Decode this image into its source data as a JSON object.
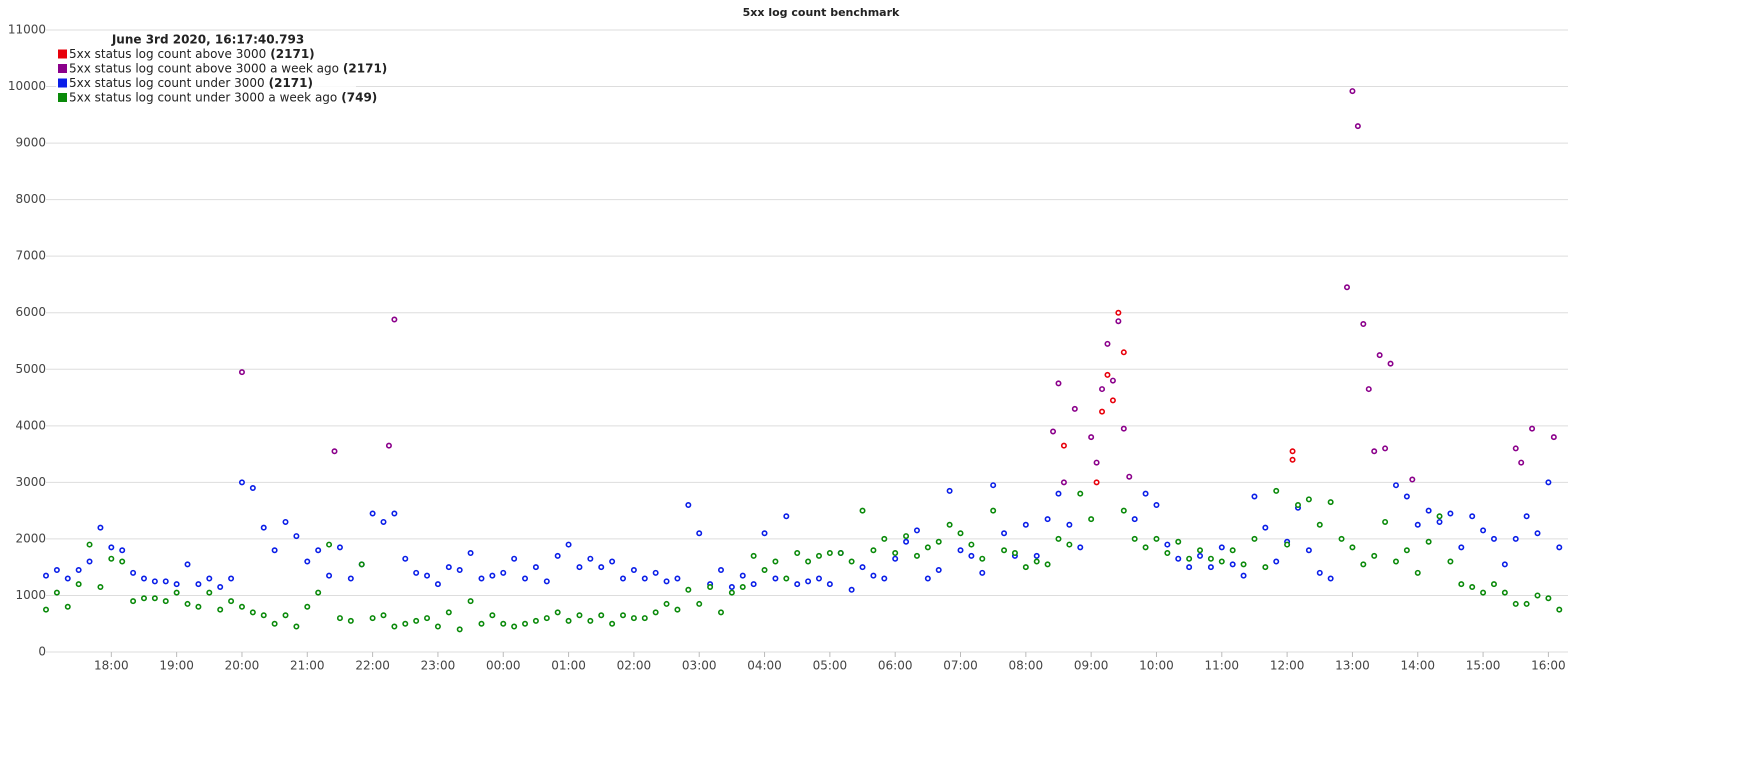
{
  "chart_data": {
    "type": "scatter",
    "title": "5xx log count benchmark",
    "legend_title": "June 3rd 2020, 16:17:40.793",
    "xlim": [
      "17:00",
      "16:18"
    ],
    "xticks": [
      "18:00",
      "19:00",
      "20:00",
      "21:00",
      "22:00",
      "23:00",
      "00:00",
      "01:00",
      "02:00",
      "03:00",
      "04:00",
      "05:00",
      "06:00",
      "07:00",
      "08:00",
      "09:00",
      "10:00",
      "11:00",
      "12:00",
      "13:00",
      "14:00",
      "15:00",
      "16:00"
    ],
    "ylim": [
      0,
      11000
    ],
    "yticks": [
      0,
      1000,
      2000,
      3000,
      4000,
      5000,
      6000,
      7000,
      8000,
      9000,
      10000,
      11000
    ],
    "grid": true,
    "x": [
      "17:00",
      "17:10",
      "17:20",
      "17:30",
      "17:40",
      "17:50",
      "18:00",
      "18:10",
      "18:20",
      "18:30",
      "18:40",
      "18:50",
      "19:00",
      "19:10",
      "19:20",
      "19:30",
      "19:40",
      "19:50",
      "20:00",
      "20:10",
      "20:20",
      "20:30",
      "20:40",
      "20:50",
      "21:00",
      "21:10",
      "21:20",
      "21:30",
      "21:40",
      "21:50",
      "22:00",
      "22:10",
      "22:20",
      "22:30",
      "22:40",
      "22:50",
      "23:00",
      "23:10",
      "23:20",
      "23:30",
      "23:40",
      "23:50",
      "00:00",
      "00:10",
      "00:20",
      "00:30",
      "00:40",
      "00:50",
      "01:00",
      "01:10",
      "01:20",
      "01:30",
      "01:40",
      "01:50",
      "02:00",
      "02:10",
      "02:20",
      "02:30",
      "02:40",
      "02:50",
      "03:00",
      "03:10",
      "03:20",
      "03:30",
      "03:40",
      "03:50",
      "04:00",
      "04:10",
      "04:20",
      "04:30",
      "04:40",
      "04:50",
      "05:00",
      "05:10",
      "05:20",
      "05:30",
      "05:40",
      "05:50",
      "06:00",
      "06:10",
      "06:20",
      "06:30",
      "06:40",
      "06:50",
      "07:00",
      "07:10",
      "07:20",
      "07:30",
      "07:40",
      "07:50",
      "08:00",
      "08:10",
      "08:20",
      "08:30",
      "08:40",
      "08:50",
      "09:00",
      "09:10",
      "09:20",
      "09:30",
      "09:40",
      "09:50",
      "10:00",
      "10:10",
      "10:20",
      "10:30",
      "10:40",
      "10:50",
      "11:00",
      "11:10",
      "11:20",
      "11:30",
      "11:40",
      "11:50",
      "12:00",
      "12:10",
      "12:20",
      "12:30",
      "12:40",
      "12:50",
      "13:00",
      "13:10",
      "13:20",
      "13:30",
      "13:40",
      "13:50",
      "14:00",
      "14:10",
      "14:20",
      "14:30",
      "14:40",
      "14:50",
      "15:00",
      "15:10",
      "15:20",
      "15:30",
      "15:40",
      "15:50",
      "16:00",
      "16:10"
    ],
    "series": [
      {
        "name": "5xx status log count above 3000",
        "legend_label": "(2171)",
        "color": "#e8000b",
        "x": [
          "08:35",
          "09:05",
          "09:10",
          "09:15",
          "09:20",
          "09:25",
          "09:30",
          "12:05",
          "12:05"
        ],
        "values": [
          3650,
          3000,
          4250,
          4900,
          4450,
          6000,
          5300,
          3550,
          3400
        ]
      },
      {
        "name": "5xx status log count above 3000 a week ago",
        "legend_label": "(2171)",
        "color": "#8b008b",
        "x": [
          "20:00",
          "21:25",
          "22:15",
          "22:20",
          "08:25",
          "08:30",
          "08:35",
          "08:45",
          "09:00",
          "09:05",
          "09:10",
          "09:15",
          "09:20",
          "09:25",
          "09:30",
          "09:35",
          "12:55",
          "13:00",
          "13:05",
          "13:10",
          "13:15",
          "13:20",
          "13:25",
          "13:30",
          "13:35",
          "13:55",
          "15:30",
          "15:35",
          "15:45",
          "16:05"
        ],
        "values": [
          4950,
          3550,
          3650,
          5880,
          3900,
          4750,
          3000,
          4300,
          3800,
          3350,
          4650,
          5450,
          4800,
          5850,
          3950,
          3100,
          6450,
          9920,
          9300,
          5800,
          4650,
          3550,
          5250,
          3600,
          5100,
          3050,
          3600,
          3350,
          3950,
          3800
        ]
      },
      {
        "name": "5xx status log count under 3000",
        "legend_label": "(2171)",
        "color": "#0a1ee8",
        "values": [
          1350,
          1450,
          1300,
          1450,
          1600,
          2200,
          1850,
          1800,
          1400,
          1300,
          1250,
          1250,
          1200,
          1550,
          1200,
          1300,
          1150,
          1300,
          3000,
          2900,
          2200,
          1800,
          2300,
          2050,
          1600,
          1800,
          1350,
          1850,
          1300,
          1550,
          2450,
          2300,
          2450,
          1650,
          1400,
          1350,
          1200,
          1500,
          1450,
          1750,
          1300,
          1350,
          1400,
          1650,
          1300,
          1500,
          1250,
          1700,
          1900,
          1500,
          1650,
          1500,
          1600,
          1300,
          1450,
          1300,
          1400,
          1250,
          1300,
          2600,
          2100,
          1200,
          1450,
          1150,
          1350,
          1200,
          2100,
          1300,
          2400,
          1200,
          1250,
          1300,
          1200,
          1750,
          1100,
          1500,
          1350,
          1300,
          1650,
          1950,
          2150,
          1300,
          1450,
          2850,
          1800,
          1700,
          1400,
          2950,
          2100,
          1700,
          2250,
          1700,
          2350,
          2800,
          2250,
          1850,
          null,
          null,
          null,
          null,
          2350,
          2800,
          2600,
          1900,
          1650,
          1500,
          1700,
          1500,
          1850,
          1550,
          1350,
          2750,
          2200,
          1600,
          1950,
          2550,
          1800,
          1400,
          1300,
          null,
          null,
          null,
          null,
          null,
          2950,
          2750,
          2250,
          2500,
          2300,
          2450,
          1850,
          2400,
          2150,
          2000,
          1550,
          2000,
          2400,
          2100,
          3000,
          1850
        ]
      },
      {
        "name": "5xx status log count under 3000 a week ago",
        "legend_label": "(749)",
        "color": "#0a8a0a",
        "values": [
          750,
          1050,
          800,
          1200,
          1900,
          1150,
          1650,
          1600,
          900,
          950,
          950,
          900,
          1050,
          850,
          800,
          1050,
          750,
          900,
          800,
          700,
          650,
          500,
          650,
          450,
          800,
          1050,
          1900,
          600,
          550,
          1550,
          600,
          650,
          450,
          500,
          550,
          600,
          450,
          700,
          400,
          900,
          500,
          650,
          500,
          450,
          500,
          550,
          600,
          700,
          550,
          650,
          550,
          650,
          500,
          650,
          600,
          600,
          700,
          850,
          750,
          1100,
          850,
          1150,
          700,
          1050,
          1150,
          1700,
          1450,
          1600,
          1300,
          1750,
          1600,
          1700,
          1750,
          1750,
          1600,
          2500,
          1800,
          2000,
          1750,
          2050,
          1700,
          1850,
          1950,
          2250,
          2100,
          1900,
          1650,
          2500,
          1800,
          1750,
          1500,
          1600,
          1550,
          2000,
          1900,
          2800,
          2350,
          null,
          null,
          2500,
          2000,
          1850,
          2000,
          1750,
          1950,
          1650,
          1800,
          1650,
          1600,
          1800,
          1550,
          2000,
          1500,
          2850,
          1900,
          2600,
          2700,
          2250,
          2650,
          2000,
          1850,
          1550,
          1700,
          2300,
          1600,
          1800,
          1400,
          1950,
          2400,
          1600,
          1200,
          1150,
          1050,
          1200,
          1050,
          850,
          850,
          1000,
          950,
          750
        ]
      }
    ]
  }
}
